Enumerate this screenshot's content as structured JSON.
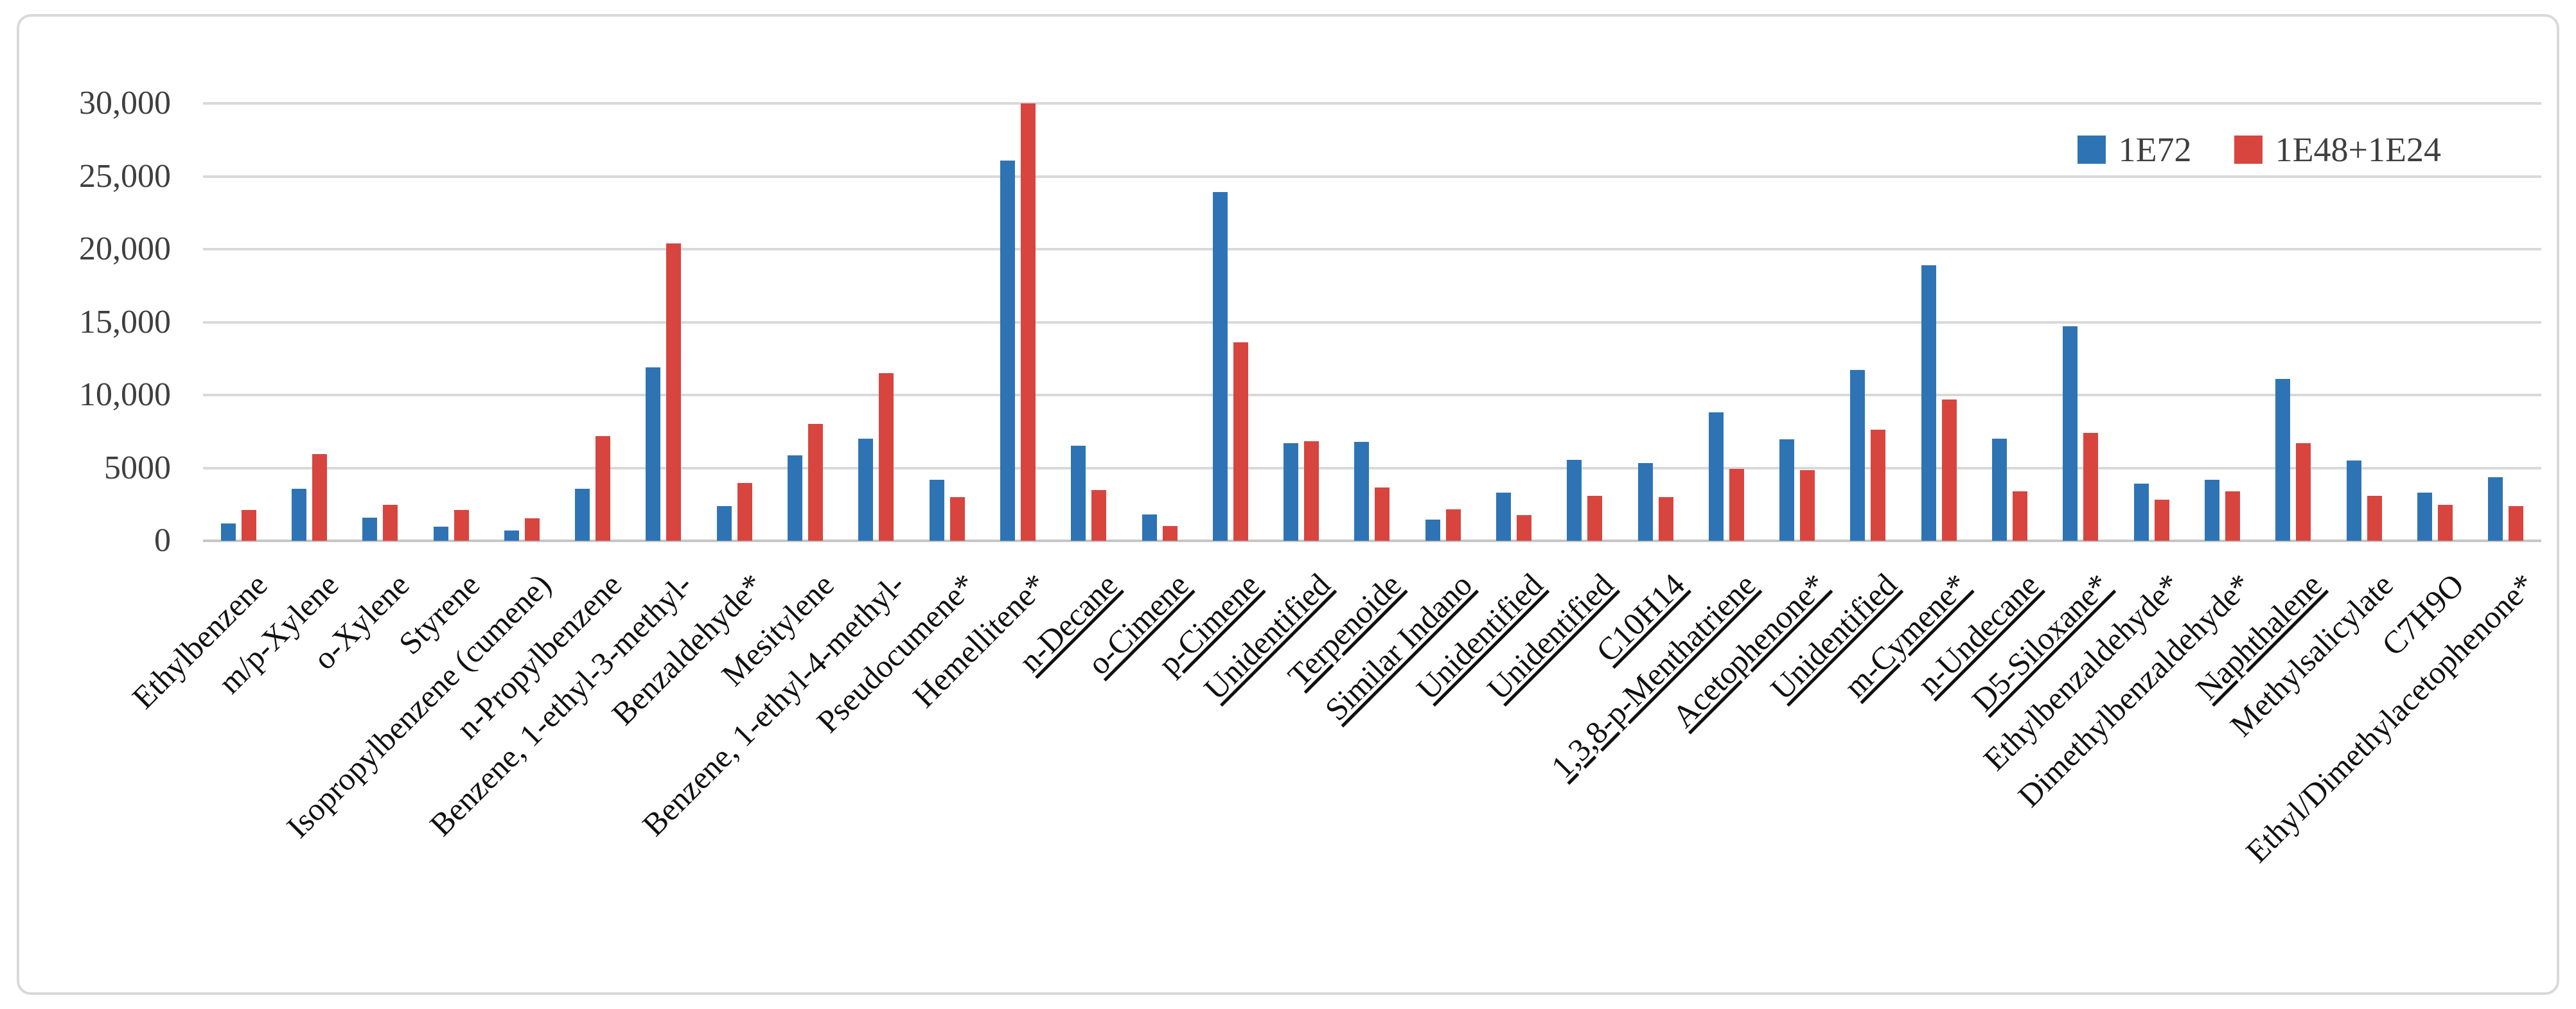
{
  "chart_data": {
    "type": "bar",
    "title": "",
    "xlabel": "",
    "ylabel": "",
    "ylim": [
      0,
      30000
    ],
    "ytick_labels": [
      "30,000",
      "25,000",
      "20,000",
      "15,000",
      "10,000",
      "5000",
      "0"
    ],
    "ytick_values": [
      30000,
      25000,
      20000,
      15000,
      10000,
      5000,
      0
    ],
    "grid": true,
    "legend_position": "top-right",
    "colors": {
      "series1_blue": "#2e74b5",
      "series2_red": "#d8453f",
      "gridline": "#d9d9d9",
      "axis_text": "#3f3f3f",
      "category_text": "#111111",
      "border": "#d9d9d9"
    },
    "categories": [
      "Ethylbenzene",
      "m/p-Xylene",
      "o-Xylene",
      "Styrene",
      "Isopropylbenzene (cumene)",
      "n-Propylbenzene",
      "Benzene, 1-ethyl-3-methyl-",
      "Benzaldehyde*",
      "Mesitylene",
      "Benzene, 1-ethyl-4-methyl-",
      "Pseudocumene*",
      "Hemellitene*",
      "n-Decane",
      "o-Cimene",
      "p-Cimene",
      "Unidentified",
      "Terpenoide",
      "Similar Indano",
      "Unidentified",
      "Unidentified",
      "C10H14",
      "1,3,8-p-Menthatriene",
      "Acetophenone*",
      "Unidentified",
      "m-Cymene*",
      "n-Undecane",
      "D5-Siloxane*",
      "Ethylbenzaldehyde*",
      "Dimethylbenzaldehyde*",
      "Naphthalene",
      "Methylsalicylate",
      "C7H9O",
      "Ethyl/Dimethylacetophenone*"
    ],
    "underlined_category_indices": [
      12,
      13,
      14,
      15,
      16,
      17,
      18,
      19,
      20,
      21,
      22,
      23,
      24,
      25,
      26,
      29
    ],
    "series": [
      {
        "name": "1E72",
        "color": "#2e74b5",
        "values": [
          1200,
          3550,
          1600,
          950,
          700,
          3550,
          11900,
          2400,
          5850,
          7000,
          4200,
          26100,
          6500,
          1800,
          23900,
          6700,
          6800,
          1450,
          3300,
          5550,
          5350,
          8800,
          6950,
          11700,
          18900,
          7000,
          14700,
          3900,
          4200,
          11100,
          5500,
          3300,
          4350
        ]
      },
      {
        "name": "1E48+1E24",
        "color": "#d8453f",
        "values": [
          2100,
          5950,
          2450,
          2100,
          1550,
          7200,
          20400,
          3950,
          8000,
          11500,
          3000,
          30000,
          3500,
          1000,
          13600,
          6850,
          3650,
          2150,
          1750,
          3100,
          3000,
          4950,
          4850,
          7600,
          9700,
          3400,
          7400,
          2800,
          3400,
          6700,
          3100,
          2450,
          2400
        ]
      }
    ]
  }
}
